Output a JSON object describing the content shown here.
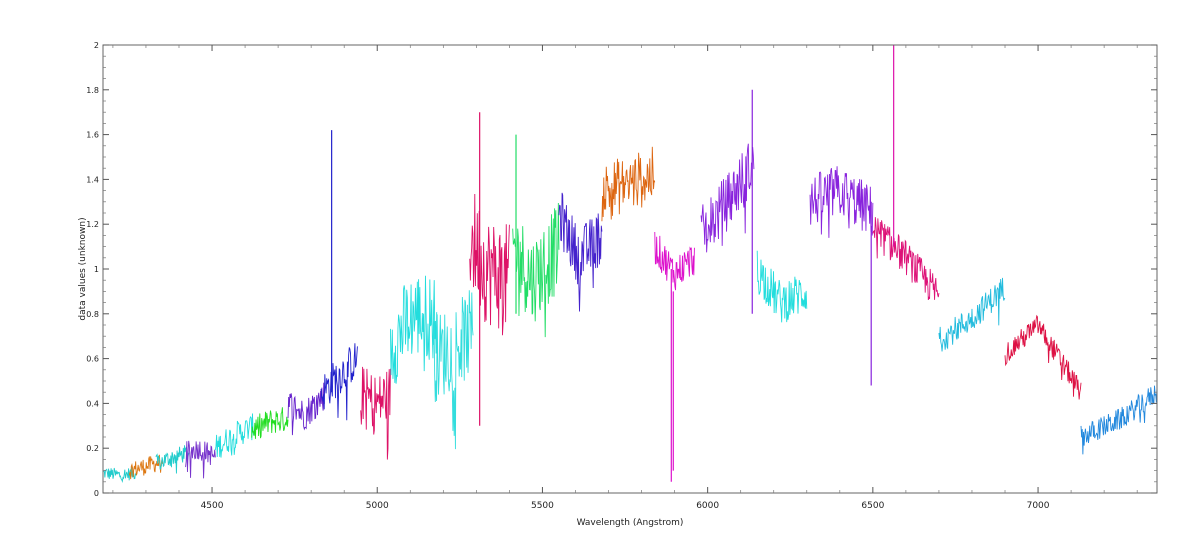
{
  "chart_data": {
    "type": "line",
    "title": "",
    "xlabel": "Wavelength (Angstrom)",
    "ylabel": "data values (unknown)",
    "xlim": [
      4170,
      7360
    ],
    "ylim": [
      0,
      2
    ],
    "grid": false,
    "legend": "none",
    "x_ticks": [
      4500,
      5000,
      5500,
      6000,
      6500,
      7000
    ],
    "x_tick_labels": [
      "4500",
      "5000",
      "5500",
      "6000",
      "6500",
      "7000"
    ],
    "y_ticks": [
      0,
      0.2,
      0.4,
      0.6,
      0.8,
      1,
      1.2,
      1.4,
      1.6,
      1.8,
      2
    ],
    "y_tick_labels": [
      "0",
      "0.2",
      "0.4",
      "0.6",
      "0.8",
      "1",
      "1.2",
      "1.4",
      "1.6",
      "1.8",
      "2"
    ],
    "series": [
      {
        "color": "#22cccc",
        "noise": 0.03,
        "x": [
          4170,
          4220,
          4270
        ],
        "y": [
          0.09,
          0.08,
          0.09
        ]
      },
      {
        "color": "#dd7711",
        "noise": 0.04,
        "x": [
          4250,
          4300,
          4350
        ],
        "y": [
          0.1,
          0.12,
          0.14
        ]
      },
      {
        "color": "#22cccc",
        "noise": 0.04,
        "x": [
          4330,
          4380,
          4430
        ],
        "y": [
          0.13,
          0.16,
          0.18
        ]
      },
      {
        "color": "#7733cc",
        "noise": 0.05,
        "x": [
          4420,
          4460,
          4510
        ],
        "y": [
          0.18,
          0.2,
          0.16
        ]
      },
      {
        "color": "#22dddd",
        "noise": 0.06,
        "x": [
          4510,
          4570,
          4630
        ],
        "y": [
          0.2,
          0.26,
          0.3
        ]
      },
      {
        "color": "#22dd22",
        "noise": 0.06,
        "x": [
          4620,
          4680,
          4730
        ],
        "y": [
          0.28,
          0.32,
          0.33
        ]
      },
      {
        "color": "#6622cc",
        "noise": 0.07,
        "x": [
          4730,
          4780,
          4840
        ],
        "y": [
          0.4,
          0.35,
          0.44
        ]
      },
      {
        "color": "#2222cc",
        "noise": 0.09,
        "x": [
          4830,
          4880,
          4940
        ],
        "y": [
          0.44,
          0.52,
          0.6
        ]
      },
      {
        "color": "#dd1166",
        "noise": 0.13,
        "x": [
          4950,
          5000,
          5040
        ],
        "y": [
          0.45,
          0.4,
          0.45
        ]
      },
      {
        "color": "#22dddd",
        "noise": 0.2,
        "x": [
          5040,
          5110,
          5180
        ],
        "y": [
          0.65,
          0.8,
          0.78
        ]
      },
      {
        "color": "#33dddd",
        "noise": 0.2,
        "x": [
          5170,
          5230,
          5290
        ],
        "y": [
          0.6,
          0.65,
          0.72
        ]
      },
      {
        "color": "#dd1166",
        "noise": 0.25,
        "x": [
          5280,
          5330,
          5400
        ],
        "y": [
          1.15,
          1.0,
          0.95
        ]
      },
      {
        "color": "#22dd66",
        "noise": 0.2,
        "x": [
          5410,
          5470,
          5550
        ],
        "y": [
          1.1,
          0.95,
          1.1
        ]
      },
      {
        "color": "#4422cc",
        "noise": 0.13,
        "x": [
          5550,
          5610,
          5680
        ],
        "y": [
          1.25,
          1.05,
          1.15
        ]
      },
      {
        "color": "#dd6611",
        "noise": 0.13,
        "x": [
          5680,
          5760,
          5840
        ],
        "y": [
          1.35,
          1.38,
          1.42
        ]
      },
      {
        "color": "#dd11cc",
        "noise": 0.08,
        "x": [
          5840,
          5900,
          5960
        ],
        "y": [
          1.1,
          0.98,
          1.05
        ]
      },
      {
        "color": "#8822dd",
        "noise": 0.13,
        "x": [
          5980,
          6060,
          6140
        ],
        "y": [
          1.15,
          1.3,
          1.48
        ]
      },
      {
        "color": "#22dddd",
        "noise": 0.1,
        "x": [
          6150,
          6220,
          6300
        ],
        "y": [
          1.0,
          0.85,
          0.9
        ]
      },
      {
        "color": "#8822dd",
        "noise": 0.12,
        "x": [
          6310,
          6400,
          6500
        ],
        "y": [
          1.3,
          1.35,
          1.25
        ]
      },
      {
        "color": "#dd1177",
        "noise": 0.08,
        "x": [
          6500,
          6600,
          6700
        ],
        "y": [
          1.18,
          1.05,
          0.88
        ]
      },
      {
        "color": "#22bbdd",
        "noise": 0.06,
        "x": [
          6700,
          6800,
          6900
        ],
        "y": [
          0.68,
          0.78,
          0.92
        ]
      },
      {
        "color": "#dd1144",
        "noise": 0.05,
        "x": [
          6900,
          7000,
          7130
        ],
        "y": [
          0.62,
          0.75,
          0.45
        ]
      },
      {
        "color": "#2288dd",
        "noise": 0.05,
        "x": [
          7130,
          7250,
          7360
        ],
        "y": [
          0.25,
          0.33,
          0.45
        ]
      }
    ],
    "spikes": [
      {
        "color": "#2222cc",
        "x": 4862,
        "ymin": 0.45,
        "ymax": 1.62
      },
      {
        "color": "#dd1166",
        "x": 5310,
        "ymin": 0.3,
        "ymax": 1.7
      },
      {
        "color": "#22dd66",
        "x": 5420,
        "ymin": 0.8,
        "ymax": 1.6
      },
      {
        "color": "#dd11cc",
        "x": 5890,
        "ymin": 0.05,
        "ymax": 1.0
      },
      {
        "color": "#dd11cc",
        "x": 5896,
        "ymin": 0.1,
        "ymax": 0.9
      },
      {
        "color": "#8822dd",
        "x": 6135,
        "ymin": 0.8,
        "ymax": 1.8
      },
      {
        "color": "#dd11aa",
        "x": 6563,
        "ymin": 1.1,
        "ymax": 2.0
      },
      {
        "color": "#8822dd",
        "x": 6495,
        "ymin": 0.48,
        "ymax": 1.3
      }
    ]
  }
}
